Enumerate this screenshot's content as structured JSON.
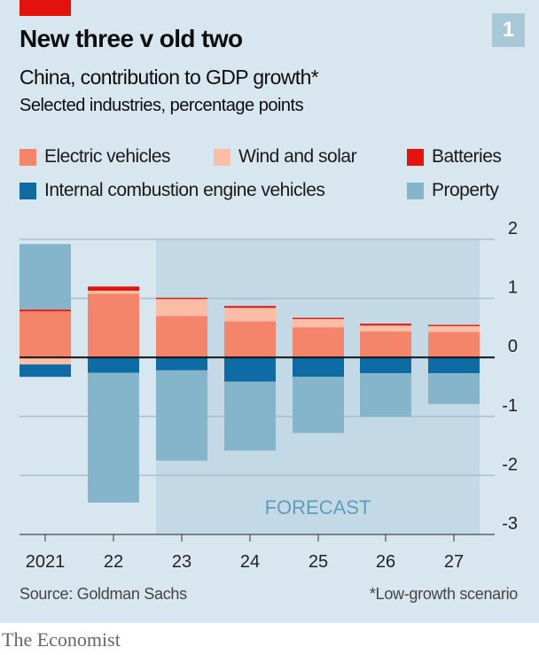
{
  "header": {
    "badge": "1",
    "title": "New three v old two",
    "subtitle": "China, contribution to GDP growth*",
    "subtitle2": "Selected industries, percentage points"
  },
  "legend": [
    {
      "label": "Electric vehicles",
      "color": "#f4846a"
    },
    {
      "label": "Wind and solar",
      "color": "#fbbda6"
    },
    {
      "label": "Batteries",
      "color": "#e3120b"
    },
    {
      "label": "Internal combustion engine vehicles",
      "color": "#0e6ba3"
    },
    {
      "label": "Property",
      "color": "#85b5cb"
    }
  ],
  "chart_data": {
    "type": "bar",
    "stacked": true,
    "categories": [
      "2021",
      "22",
      "23",
      "24",
      "25",
      "26",
      "27"
    ],
    "series": [
      {
        "name": "Electric vehicles",
        "color": "#f4846a",
        "values": [
          0.78,
          1.08,
          0.7,
          0.61,
          0.51,
          0.44,
          0.43
        ]
      },
      {
        "name": "Wind and solar",
        "color": "#fbbda6",
        "values": [
          -0.12,
          0.05,
          0.29,
          0.23,
          0.14,
          0.1,
          0.1
        ]
      },
      {
        "name": "Batteries",
        "color": "#e3120b",
        "values": [
          0.03,
          0.07,
          0.02,
          0.03,
          0.02,
          0.03,
          0.02
        ]
      },
      {
        "name": "Internal combustion engine vehicles",
        "color": "#0e6ba3",
        "values": [
          -0.21,
          -0.26,
          -0.22,
          -0.41,
          -0.33,
          -0.27,
          -0.27
        ]
      },
      {
        "name": "Property",
        "color": "#85b5cb",
        "values": [
          1.11,
          -2.2,
          -1.53,
          -1.17,
          -0.95,
          -0.74,
          -0.52
        ]
      }
    ],
    "ylim": [
      -3,
      2
    ],
    "yticks": [
      "2",
      "1",
      "0",
      "-1",
      "-2",
      "-3"
    ],
    "ytick_values": [
      2,
      1,
      0,
      -1,
      -2,
      -3
    ],
    "grid": true,
    "forecast_label": "FORECAST",
    "forecast_categories": [
      "23",
      "24",
      "25",
      "26",
      "27"
    ],
    "forecast_shade_color": "#c3dae6"
  },
  "footer": {
    "source": "Source: Goldman Sachs",
    "footnote": "*Low-growth scenario",
    "logo": "The Economist"
  }
}
